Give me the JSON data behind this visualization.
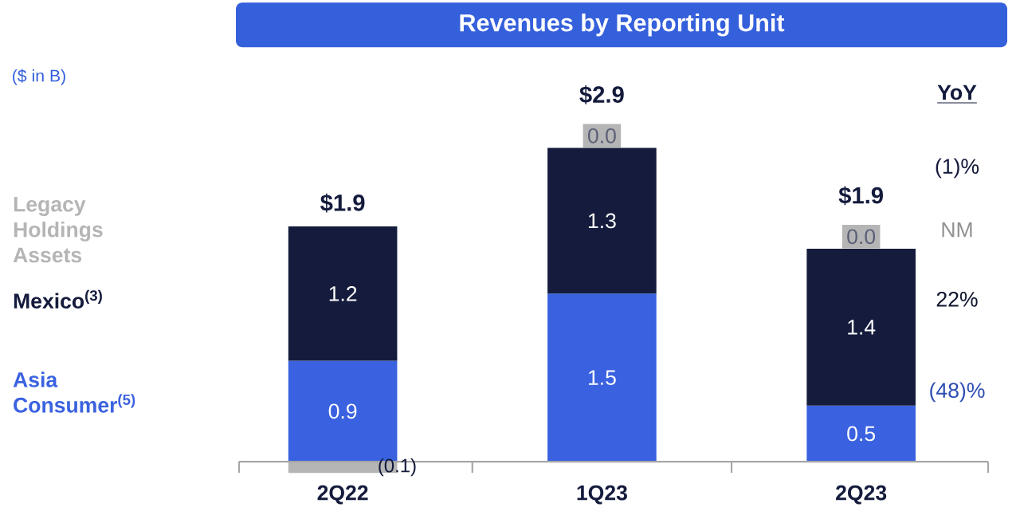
{
  "chart_data": {
    "type": "bar",
    "title": "Revenues by Reporting Unit",
    "subtitle": "($ in B)",
    "stacked": true,
    "legend": "left",
    "categories": [
      "2Q22",
      "1Q23",
      "2Q23"
    ],
    "series": [
      {
        "name": "Asia Consumer$^{(5)}$",
        "color": "#3a62e0",
        "values": [
          0.9,
          1.5,
          0.5
        ],
        "value_labels": [
          "0.9",
          "1.5",
          "0.5"
        ]
      },
      {
        "name": "Mexico$^{(3)}$",
        "color": "#141b3c",
        "values": [
          1.2,
          1.3,
          1.4
        ],
        "value_labels": [
          "1.2",
          "1.3",
          "1.4"
        ]
      },
      {
        "name": "Legacy Holdings Assets",
        "color": "#b5b5b5",
        "values": [
          -0.1,
          0.0,
          0.0
        ],
        "value_labels": [
          "(0.1)",
          "0.0",
          "0.0"
        ]
      }
    ],
    "totals": [
      "$1.9",
      "$2.9",
      "$1.9"
    ],
    "annotations": [
      "YoY",
      "(1)%",
      "NM",
      "22%",
      "(48)%"
    ]
  }
}
